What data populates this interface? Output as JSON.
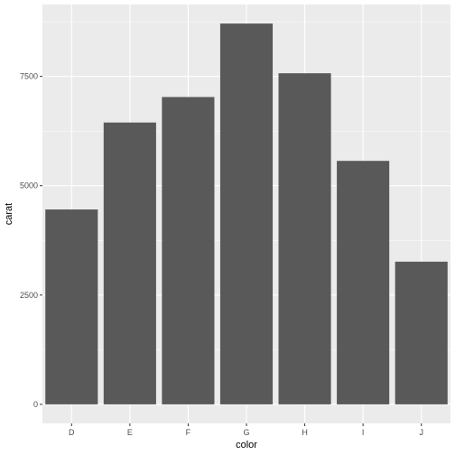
{
  "chart_data": {
    "type": "bar",
    "categories": [
      "D",
      "E",
      "F",
      "G",
      "H",
      "I",
      "J"
    ],
    "values": [
      4456.56,
      6445.12,
      7028.05,
      8708.28,
      7571.58,
      5568.0,
      3263.1
    ],
    "title": "",
    "xlabel": "color",
    "ylabel": "carat",
    "ylim": [
      -435.4,
      9143.7
    ],
    "yticks": [
      0,
      2500,
      5000,
      7500
    ],
    "ytick_labels": [
      "0",
      "2500",
      "5000",
      "7500"
    ],
    "grid": true,
    "colors": {
      "panel_background": "#ebebeb",
      "grid_major": "#ffffff",
      "bar_fill": "#595959",
      "tick_mark": "#333333"
    }
  }
}
